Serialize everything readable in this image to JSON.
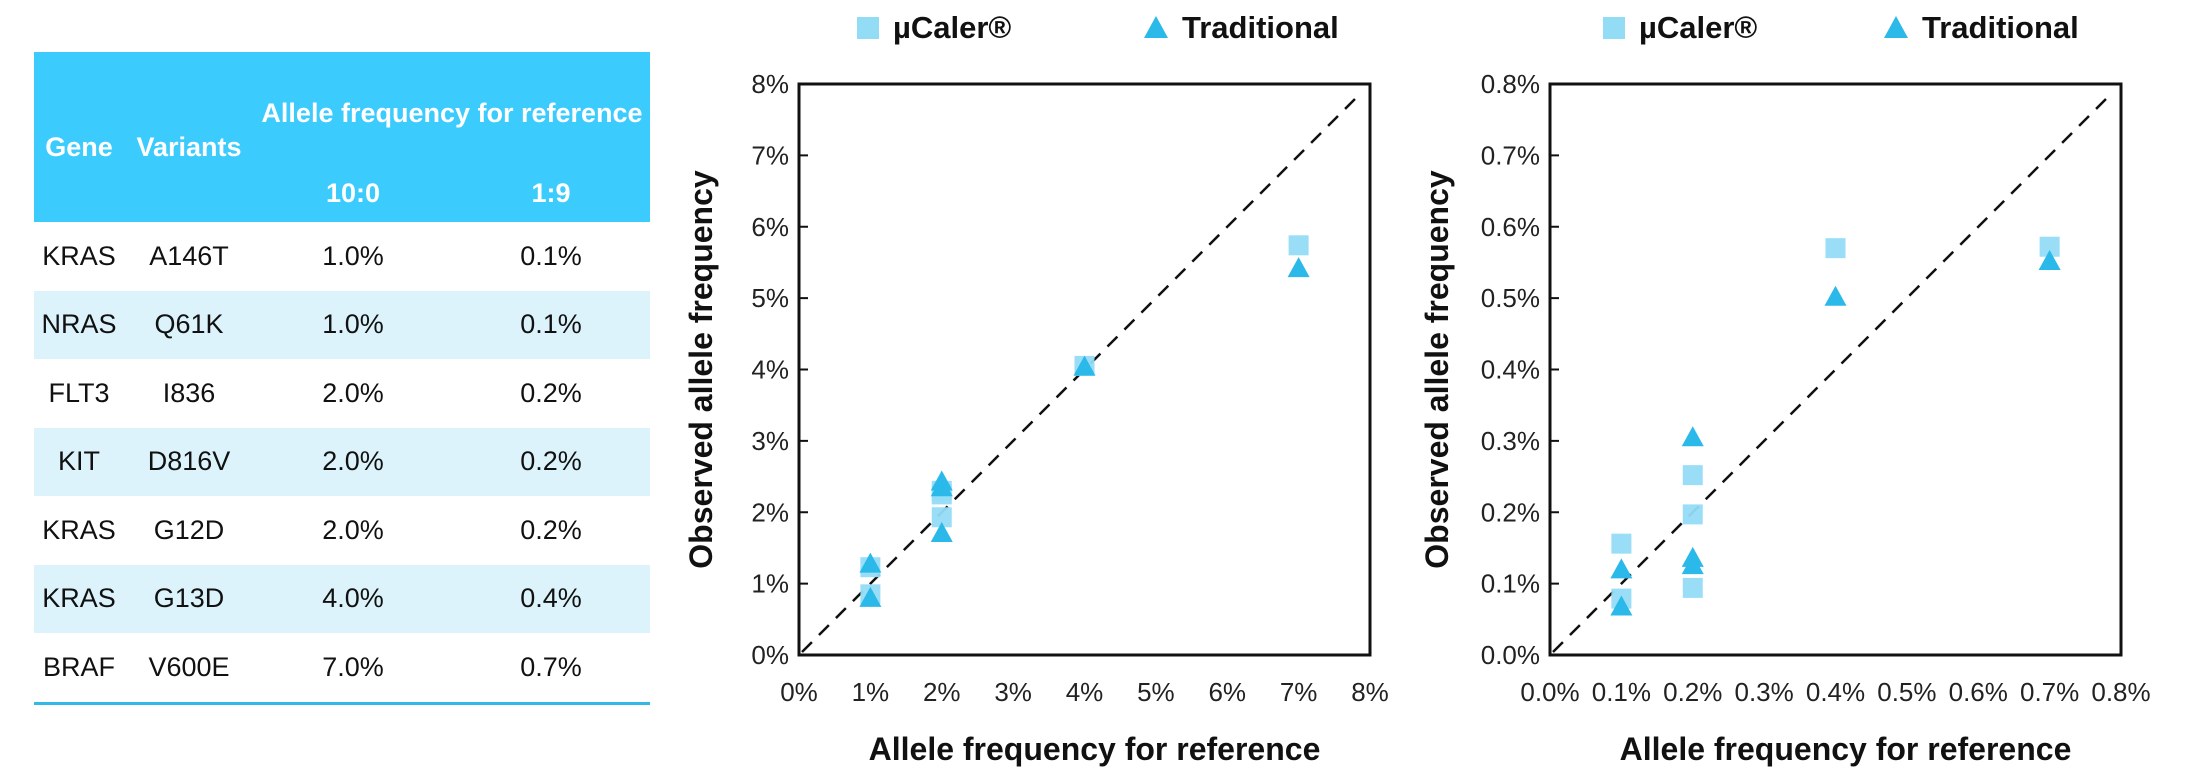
{
  "table": {
    "headers": {
      "gene": "Gene",
      "variants": "Variants",
      "group": "Allele frequency for reference",
      "col1": "10:0",
      "col2": "1:9"
    },
    "rows": [
      {
        "gene": "KRAS",
        "variant": "A146T",
        "r10_0": "1.0%",
        "r1_9": "0.1%"
      },
      {
        "gene": "NRAS",
        "variant": "Q61K",
        "r10_0": "1.0%",
        "r1_9": "0.1%"
      },
      {
        "gene": "FLT3",
        "variant": "I836",
        "r10_0": "2.0%",
        "r1_9": "0.2%"
      },
      {
        "gene": "KIT",
        "variant": "D816V",
        "r10_0": "2.0%",
        "r1_9": "0.2%"
      },
      {
        "gene": "KRAS",
        "variant": "G12D",
        "r10_0": "2.0%",
        "r1_9": "0.2%"
      },
      {
        "gene": "KRAS",
        "variant": "G13D",
        "r10_0": "4.0%",
        "r1_9": "0.4%"
      },
      {
        "gene": "BRAF",
        "variant": "V600E",
        "r10_0": "7.0%",
        "r1_9": "0.7%"
      }
    ],
    "header_color": "#3ccbfd",
    "stripe_color": "#dcf3fb"
  },
  "chart_data": [
    {
      "type": "scatter",
      "xlabel": "Allele frequency for reference",
      "ylabel": "Observed allele frequency",
      "xlim": [
        0,
        8
      ],
      "ylim": [
        0,
        8
      ],
      "xticks": [
        "0%",
        "1%",
        "2%",
        "3%",
        "4%",
        "5%",
        "6%",
        "7%",
        "8%"
      ],
      "yticks": [
        "0%",
        "1%",
        "2%",
        "3%",
        "4%",
        "5%",
        "6%",
        "7%",
        "8%"
      ],
      "unit": "%",
      "reference_line": "y = x (dashed)",
      "legend": "top",
      "series": [
        {
          "name": "µCaler®",
          "marker": "square",
          "color": "#93dcf5",
          "x": [
            1,
            1,
            2,
            2,
            2,
            4,
            7
          ],
          "y": [
            1.23,
            0.85,
            2.3,
            2.25,
            1.93,
            4.05,
            5.74
          ]
        },
        {
          "name": "Traditional",
          "marker": "triangle",
          "color": "#2bb9ea",
          "x": [
            1,
            1,
            2,
            2,
            2,
            4,
            7
          ],
          "y": [
            1.28,
            0.8,
            2.43,
            2.35,
            1.71,
            4.04,
            5.42
          ]
        }
      ]
    },
    {
      "type": "scatter",
      "xlabel": "Allele frequency for reference",
      "ylabel": "Observed allele frequency",
      "xlim": [
        0,
        0.8
      ],
      "ylim": [
        0,
        0.8
      ],
      "xticks": [
        "0.0%",
        "0.1%",
        "0.2%",
        "0.3%",
        "0.4%",
        "0.5%",
        "0.6%",
        "0.7%",
        "0.8%"
      ],
      "yticks": [
        "0.0%",
        "0.1%",
        "0.2%",
        "0.3%",
        "0.4%",
        "0.5%",
        "0.6%",
        "0.7%",
        "0.8%"
      ],
      "unit": "%",
      "reference_line": "y = x (dashed)",
      "legend": "top",
      "series": [
        {
          "name": "µCaler®",
          "marker": "square",
          "color": "#93dcf5",
          "x": [
            0.1,
            0.1,
            0.2,
            0.2,
            0.2,
            0.4,
            0.7
          ],
          "y": [
            0.156,
            0.079,
            0.252,
            0.197,
            0.094,
            0.57,
            0.572
          ]
        },
        {
          "name": "Traditional",
          "marker": "triangle",
          "color": "#2bb9ea",
          "x": [
            0.1,
            0.1,
            0.2,
            0.2,
            0.2,
            0.4,
            0.7
          ],
          "y": [
            0.12,
            0.068,
            0.305,
            0.136,
            0.126,
            0.502,
            0.552
          ]
        }
      ]
    }
  ]
}
